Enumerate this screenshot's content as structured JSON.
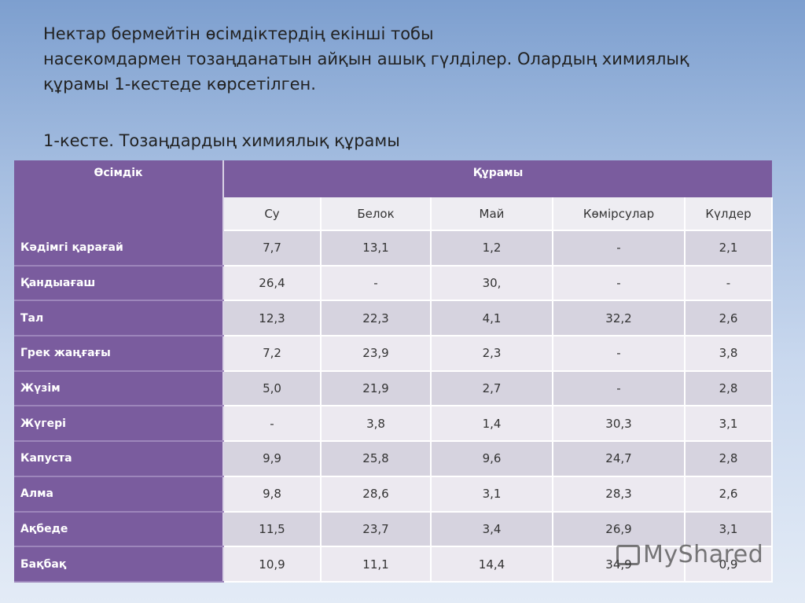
{
  "intro": {
    "line1": "Нектар бермейтін өсімдіктердің екінші тобы",
    "line2": "насекомдармен тозаңданатын айқын ашық гүлділер. Олардың химиялық",
    "line3": "құрамы 1-кестеде көрсетілген."
  },
  "table_caption": "1-кесте. Тозаңдардың химиялық құрамы",
  "table": {
    "col_plant": "Өсімдік",
    "col_group": "Құрамы",
    "subcolumns": [
      "Су",
      "Белок",
      "Май",
      "Көмірсулар",
      "Күлдер"
    ],
    "rows": [
      {
        "plant": "Кәдімгі қарағай",
        "values": [
          "7,7",
          "13,1",
          "1,2",
          "-",
          "2,1"
        ]
      },
      {
        "plant": "Қандыағаш",
        "values": [
          "26,4",
          "-",
          "30,",
          "-",
          "-"
        ]
      },
      {
        "plant": "Тал",
        "values": [
          "12,3",
          "22,3",
          "4,1",
          "32,2",
          "2,6"
        ]
      },
      {
        "plant": "Грек жаңғағы",
        "values": [
          "7,2",
          "23,9",
          "2,3",
          "-",
          "3,8"
        ]
      },
      {
        "plant": "Жүзім",
        "values": [
          "5,0",
          "21,9",
          "2,7",
          "-",
          "2,8"
        ]
      },
      {
        "plant": "Жүгері",
        "values": [
          "-",
          "3,8",
          "1,4",
          "30,3",
          "3,1"
        ]
      },
      {
        "plant": "Капуста",
        "values": [
          "9,9",
          "25,8",
          "9,6",
          "24,7",
          "2,8"
        ]
      },
      {
        "plant": "Алма",
        "values": [
          "9,8",
          "28,6",
          "3,1",
          "28,3",
          "2,6"
        ]
      },
      {
        "plant": "Ақбеде",
        "values": [
          "11,5",
          "23,7",
          "3,4",
          "26,9",
          "3,1"
        ]
      },
      {
        "plant": "Бақбақ",
        "values": [
          "10,9",
          "11,1",
          "14,4",
          "34,9",
          "0,9"
        ]
      }
    ]
  },
  "watermark": "MyShared"
}
